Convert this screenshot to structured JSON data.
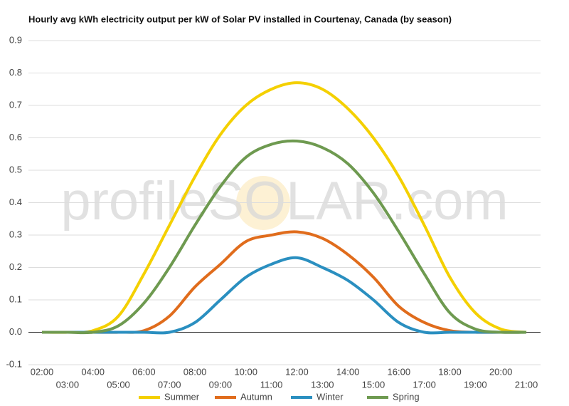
{
  "chart_data": {
    "type": "line",
    "title": "Hourly avg kWh electricity output per kW of Solar PV installed in Courtenay, Canada (by season)",
    "watermark": "profileSOLAR.com",
    "categories": [
      "02:00",
      "03:00",
      "04:00",
      "05:00",
      "06:00",
      "07:00",
      "08:00",
      "09:00",
      "10:00",
      "11:00",
      "12:00",
      "13:00",
      "14:00",
      "15:00",
      "16:00",
      "17:00",
      "18:00",
      "19:00",
      "20:00",
      "21:00"
    ],
    "series": [
      {
        "name": "Summer",
        "color": "#f4d000",
        "values": [
          0,
          0,
          0.005,
          0.05,
          0.18,
          0.33,
          0.48,
          0.61,
          0.7,
          0.75,
          0.77,
          0.75,
          0.69,
          0.6,
          0.48,
          0.33,
          0.17,
          0.06,
          0.01,
          0
        ]
      },
      {
        "name": "Autumn",
        "color": "#e06c1c",
        "values": [
          0,
          0,
          0,
          0,
          0.005,
          0.05,
          0.14,
          0.21,
          0.28,
          0.3,
          0.31,
          0.29,
          0.24,
          0.17,
          0.08,
          0.03,
          0.005,
          0,
          0,
          0
        ]
      },
      {
        "name": "Winter",
        "color": "#2a8fc0",
        "values": [
          0,
          0,
          0,
          0,
          0,
          0,
          0.03,
          0.1,
          0.17,
          0.21,
          0.23,
          0.2,
          0.16,
          0.1,
          0.03,
          0,
          0,
          0,
          0,
          0
        ]
      },
      {
        "name": "Spring",
        "color": "#6e9a50",
        "values": [
          0,
          0,
          0,
          0.02,
          0.09,
          0.2,
          0.33,
          0.45,
          0.54,
          0.58,
          0.59,
          0.57,
          0.52,
          0.43,
          0.31,
          0.18,
          0.06,
          0.01,
          0,
          0
        ]
      }
    ],
    "ylim": [
      -0.1,
      0.9
    ],
    "yticks": [
      {
        "value": -0.1,
        "label": "-0.1"
      },
      {
        "value": 0,
        "label": "0.0"
      },
      0.1,
      0.2,
      0.3,
      0.4,
      0.5,
      0.6,
      0.7,
      0.8,
      0.9
    ],
    "grid": true,
    "legend": "bottom"
  }
}
